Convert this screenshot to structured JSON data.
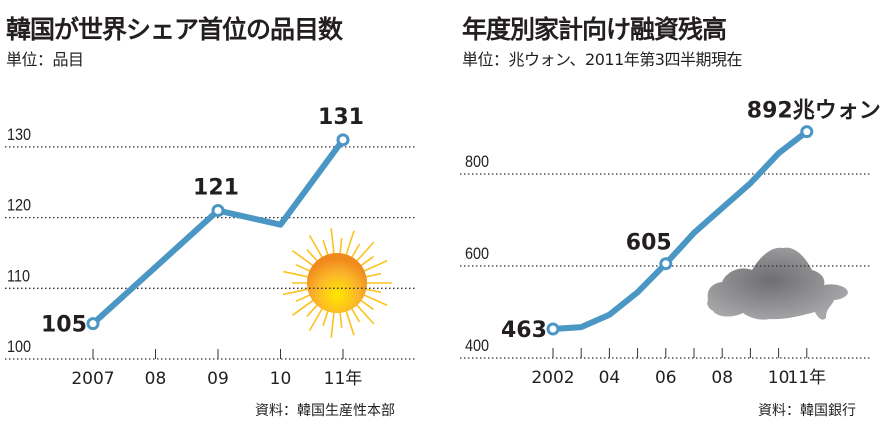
{
  "chart_data": [
    {
      "type": "line",
      "title": "韓国が世界シェア首位の品目数",
      "subtitle": "単位：品目",
      "source": "資料：韓国生産性本部",
      "x": [
        2007,
        2008,
        2009,
        2010,
        2011
      ],
      "xtick_labels": [
        "2007",
        "08",
        "09",
        "10",
        "11年"
      ],
      "values": [
        105,
        113,
        121,
        119,
        131
      ],
      "data_labels": [
        {
          "index": 0,
          "text": "105"
        },
        {
          "index": 2,
          "text": "121"
        },
        {
          "index": 4,
          "text": "131"
        }
      ],
      "yticks": [
        100,
        110,
        120,
        130
      ],
      "ylim": [
        100,
        131
      ],
      "grid": true,
      "line_color": "#4a96c4",
      "decoration": "sun-icon"
    },
    {
      "type": "line",
      "title": "年度別家計向け融資残高",
      "subtitle": "単位：兆ウォン、2011年第3四半期現在",
      "source": "資料：韓国銀行",
      "x": [
        2002,
        2003,
        2004,
        2005,
        2006,
        2007,
        2008,
        2009,
        2010,
        2011
      ],
      "xtick_labels": [
        "2002",
        "",
        "04",
        "",
        "06",
        "",
        "08",
        "",
        "10",
        "11年"
      ],
      "values": [
        463,
        467,
        494,
        543,
        605,
        672,
        726,
        780,
        845,
        892
      ],
      "data_labels": [
        {
          "index": 0,
          "text": "463"
        },
        {
          "index": 4,
          "text": "605"
        },
        {
          "index": 9,
          "text": "892兆ウォン"
        }
      ],
      "yticks": [
        400,
        600,
        800
      ],
      "ylim": [
        400,
        892
      ],
      "grid": true,
      "line_color": "#4a96c4",
      "decoration": "cloud-icon"
    }
  ]
}
